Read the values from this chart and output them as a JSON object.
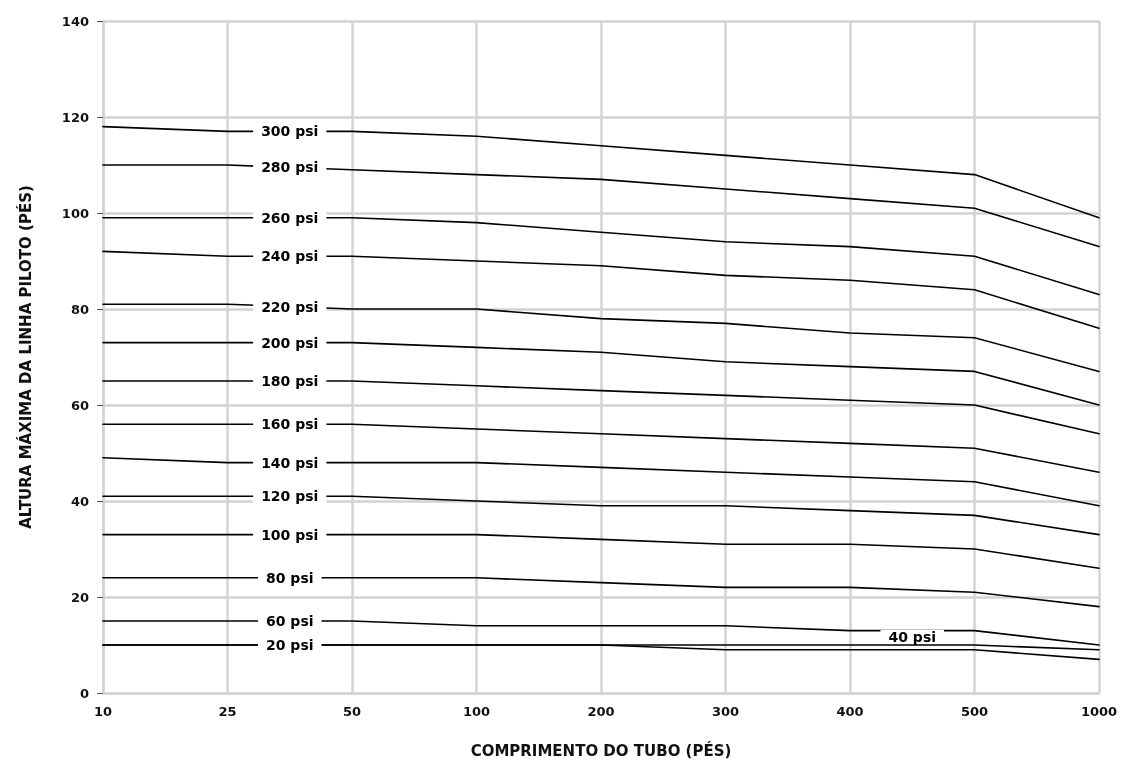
{
  "chart_data": {
    "type": "line",
    "xlabel": "COMPRIMENTO DO TUBO (PÉS)",
    "ylabel": "ALTURA MÁXIMA DA LINHA PILOTO (PÉS)",
    "categories": [
      "10",
      "25",
      "50",
      "100",
      "200",
      "300",
      "400",
      "500",
      "1000"
    ],
    "ylim": [
      0,
      140
    ],
    "yticks": [
      0,
      20,
      40,
      60,
      80,
      100,
      120,
      140
    ],
    "grid": true,
    "legend": false,
    "marker": "none",
    "line_style": "solid",
    "series": [
      {
        "name": "300 psi",
        "color": "#000000",
        "values": [
          118,
          117,
          117,
          116,
          114,
          112,
          110,
          108,
          99
        ]
      },
      {
        "name": "280 psi",
        "color": "#000000",
        "values": [
          110,
          110,
          109,
          108,
          107,
          105,
          103,
          101,
          93
        ]
      },
      {
        "name": "260 psi",
        "color": "#000000",
        "values": [
          99,
          99,
          99,
          98,
          96,
          94,
          93,
          91,
          83
        ]
      },
      {
        "name": "240 psi",
        "color": "#000000",
        "values": [
          92,
          91,
          91,
          90,
          89,
          87,
          86,
          84,
          76
        ]
      },
      {
        "name": "220 psi",
        "color": "#000000",
        "values": [
          81,
          81,
          80,
          80,
          78,
          77,
          75,
          74,
          67
        ]
      },
      {
        "name": "200 psi",
        "color": "#000000",
        "values": [
          73,
          73,
          73,
          72,
          71,
          69,
          68,
          67,
          60
        ]
      },
      {
        "name": "180 psi",
        "color": "#000000",
        "values": [
          65,
          65,
          65,
          64,
          63,
          62,
          61,
          60,
          54
        ]
      },
      {
        "name": "160 psi",
        "color": "#000000",
        "values": [
          56,
          56,
          56,
          55,
          54,
          53,
          52,
          51,
          46
        ]
      },
      {
        "name": "140 psi",
        "color": "#000000",
        "values": [
          49,
          48,
          48,
          48,
          47,
          46,
          45,
          44,
          39
        ]
      },
      {
        "name": "120 psi",
        "color": "#000000",
        "values": [
          41,
          41,
          41,
          40,
          39,
          39,
          38,
          37,
          33
        ]
      },
      {
        "name": "100 psi",
        "color": "#000000",
        "values": [
          33,
          33,
          33,
          33,
          32,
          31,
          31,
          30,
          26
        ]
      },
      {
        "name": "80 psi",
        "color": "#000000",
        "values": [
          24,
          24,
          24,
          24,
          23,
          22,
          22,
          21,
          18
        ]
      },
      {
        "name": "60 psi",
        "color": "#000000",
        "values": [
          15,
          15,
          15,
          14,
          14,
          14,
          13,
          13,
          10
        ]
      },
      {
        "name": "40 psi",
        "color": "#000000",
        "values": [
          10,
          10,
          10,
          10,
          10,
          10,
          10,
          10,
          9
        ]
      },
      {
        "name": "20 psi",
        "color": "#000000",
        "values": [
          10,
          10,
          10,
          10,
          10,
          9,
          9,
          9,
          7
        ]
      }
    ]
  }
}
